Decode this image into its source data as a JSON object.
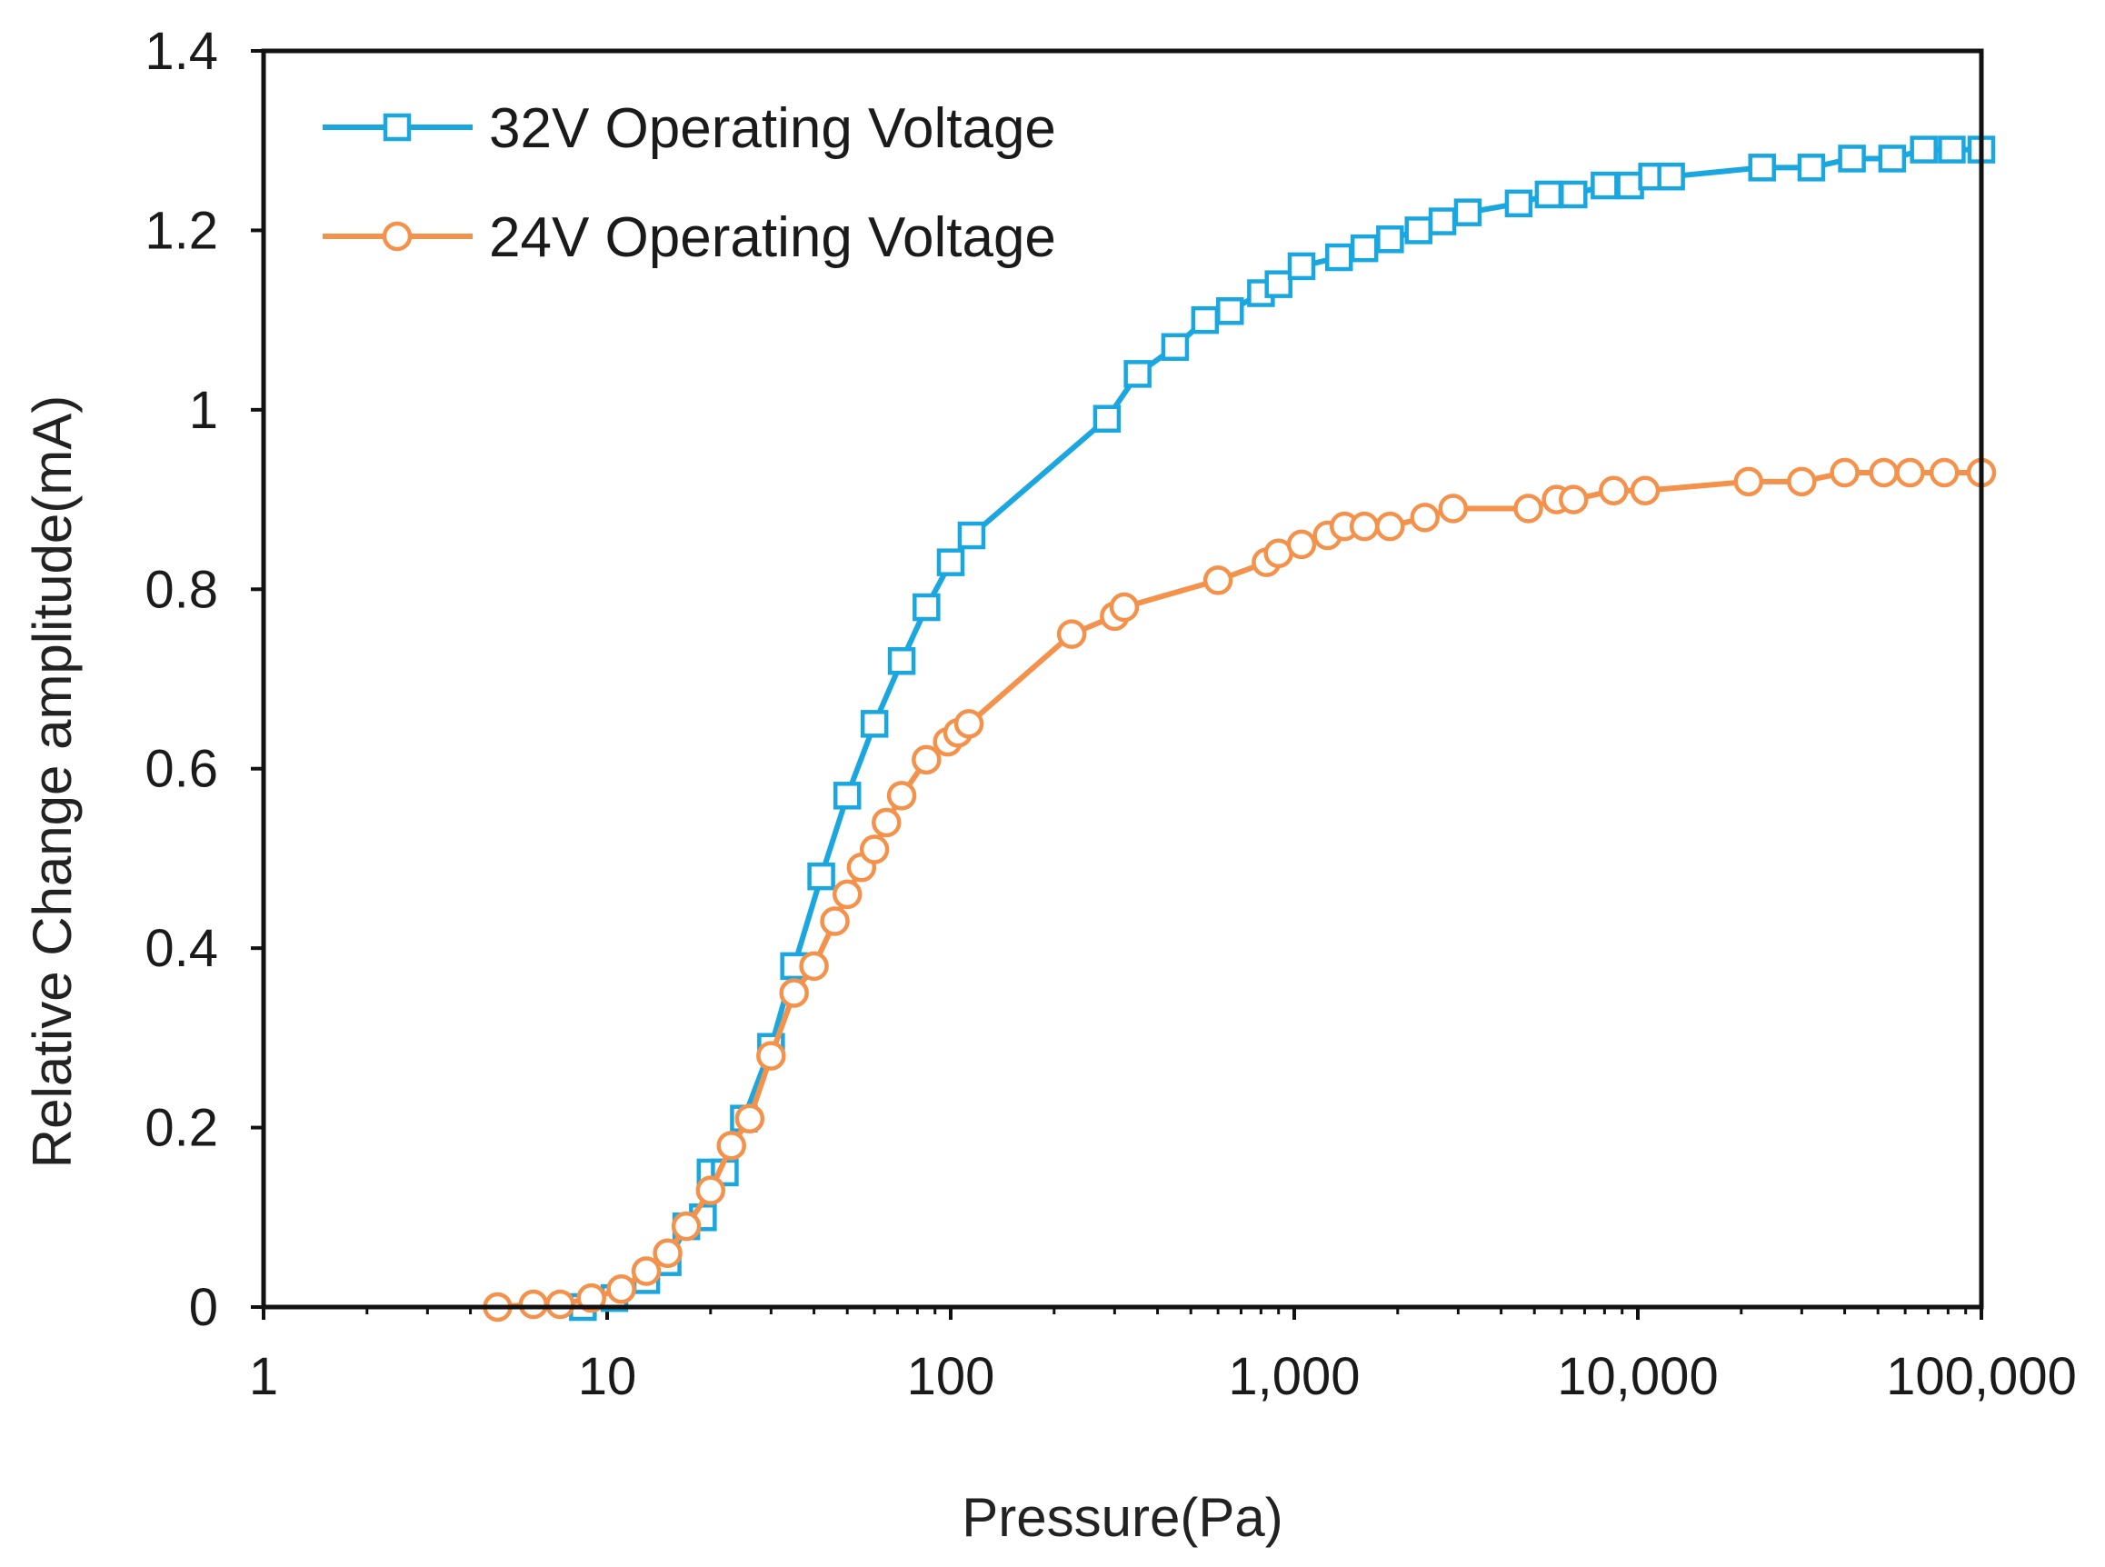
{
  "chart_data": {
    "type": "line",
    "xlabel": "Pressure(Pa)",
    "ylabel": "Relative Change amplitude(mA)",
    "x_scale": "log",
    "xlim": [
      1,
      100000
    ],
    "ylim": [
      0,
      1.4
    ],
    "x_ticks": [
      {
        "value": 1,
        "label": "1"
      },
      {
        "value": 10,
        "label": "10"
      },
      {
        "value": 100,
        "label": "100"
      },
      {
        "value": 1000,
        "label": "1,000"
      },
      {
        "value": 10000,
        "label": "10,000"
      },
      {
        "value": 100000,
        "label": "100,000"
      }
    ],
    "y_ticks": [
      {
        "value": 0,
        "label": "0"
      },
      {
        "value": 0.2,
        "label": "0.2"
      },
      {
        "value": 0.4,
        "label": "0.4"
      },
      {
        "value": 0.6,
        "label": "0.6"
      },
      {
        "value": 0.8,
        "label": "0.8"
      },
      {
        "value": 1.0,
        "label": "1"
      },
      {
        "value": 1.2,
        "label": "1.2"
      },
      {
        "value": 1.4,
        "label": "1.4"
      }
    ],
    "grid": false,
    "legend_position": "top-left",
    "series": [
      {
        "name": "32V Operating Voltage",
        "color": "#1aa7e0",
        "marker": "square",
        "points": [
          [
            8.5,
            0.0
          ],
          [
            10.5,
            0.01
          ],
          [
            13,
            0.03
          ],
          [
            15,
            0.05
          ],
          [
            17,
            0.09
          ],
          [
            19,
            0.1
          ],
          [
            20,
            0.15
          ],
          [
            22,
            0.15
          ],
          [
            25,
            0.21
          ],
          [
            30,
            0.29
          ],
          [
            35,
            0.38
          ],
          [
            42,
            0.48
          ],
          [
            50,
            0.57
          ],
          [
            60,
            0.65
          ],
          [
            72,
            0.72
          ],
          [
            85,
            0.78
          ],
          [
            100,
            0.83
          ],
          [
            115,
            0.86
          ],
          [
            285,
            0.99
          ],
          [
            350,
            1.04
          ],
          [
            450,
            1.07
          ],
          [
            550,
            1.1
          ],
          [
            650,
            1.11
          ],
          [
            800,
            1.13
          ],
          [
            900,
            1.14
          ],
          [
            1050,
            1.16
          ],
          [
            1350,
            1.17
          ],
          [
            1600,
            1.18
          ],
          [
            1900,
            1.19
          ],
          [
            2300,
            1.2
          ],
          [
            2700,
            1.21
          ],
          [
            3200,
            1.22
          ],
          [
            4500,
            1.23
          ],
          [
            5500,
            1.24
          ],
          [
            6500,
            1.24
          ],
          [
            8000,
            1.25
          ],
          [
            9500,
            1.25
          ],
          [
            11000,
            1.26
          ],
          [
            12500,
            1.26
          ],
          [
            23000,
            1.27
          ],
          [
            32000,
            1.27
          ],
          [
            42000,
            1.28
          ],
          [
            55000,
            1.28
          ],
          [
            68000,
            1.29
          ],
          [
            82000,
            1.29
          ],
          [
            100000,
            1.29
          ]
        ]
      },
      {
        "name": "24V Operating Voltage",
        "color": "#f4914a",
        "marker": "circle",
        "points": [
          [
            4.8,
            0.0
          ],
          [
            6.1,
            0.003
          ],
          [
            7.3,
            0.003
          ],
          [
            9,
            0.01
          ],
          [
            11,
            0.02
          ],
          [
            13,
            0.04
          ],
          [
            15,
            0.06
          ],
          [
            17,
            0.09
          ],
          [
            20,
            0.13
          ],
          [
            23,
            0.18
          ],
          [
            26,
            0.21
          ],
          [
            30,
            0.28
          ],
          [
            35,
            0.35
          ],
          [
            40,
            0.38
          ],
          [
            46,
            0.43
          ],
          [
            50,
            0.46
          ],
          [
            55,
            0.49
          ],
          [
            60,
            0.51
          ],
          [
            65,
            0.54
          ],
          [
            72,
            0.57
          ],
          [
            85,
            0.61
          ],
          [
            98,
            0.63
          ],
          [
            105,
            0.64
          ],
          [
            113,
            0.65
          ],
          [
            225,
            0.75
          ],
          [
            300,
            0.77
          ],
          [
            320,
            0.78
          ],
          [
            600,
            0.81
          ],
          [
            830,
            0.83
          ],
          [
            900,
            0.84
          ],
          [
            1050,
            0.85
          ],
          [
            1250,
            0.86
          ],
          [
            1400,
            0.87
          ],
          [
            1600,
            0.87
          ],
          [
            1900,
            0.87
          ],
          [
            2400,
            0.88
          ],
          [
            2900,
            0.89
          ],
          [
            4800,
            0.89
          ],
          [
            5800,
            0.9
          ],
          [
            6500,
            0.9
          ],
          [
            8500,
            0.91
          ],
          [
            10500,
            0.91
          ],
          [
            21000,
            0.92
          ],
          [
            30000,
            0.92
          ],
          [
            40000,
            0.93
          ],
          [
            52000,
            0.93
          ],
          [
            62000,
            0.93
          ],
          [
            78000,
            0.93
          ],
          [
            100000,
            0.93
          ]
        ]
      }
    ]
  }
}
